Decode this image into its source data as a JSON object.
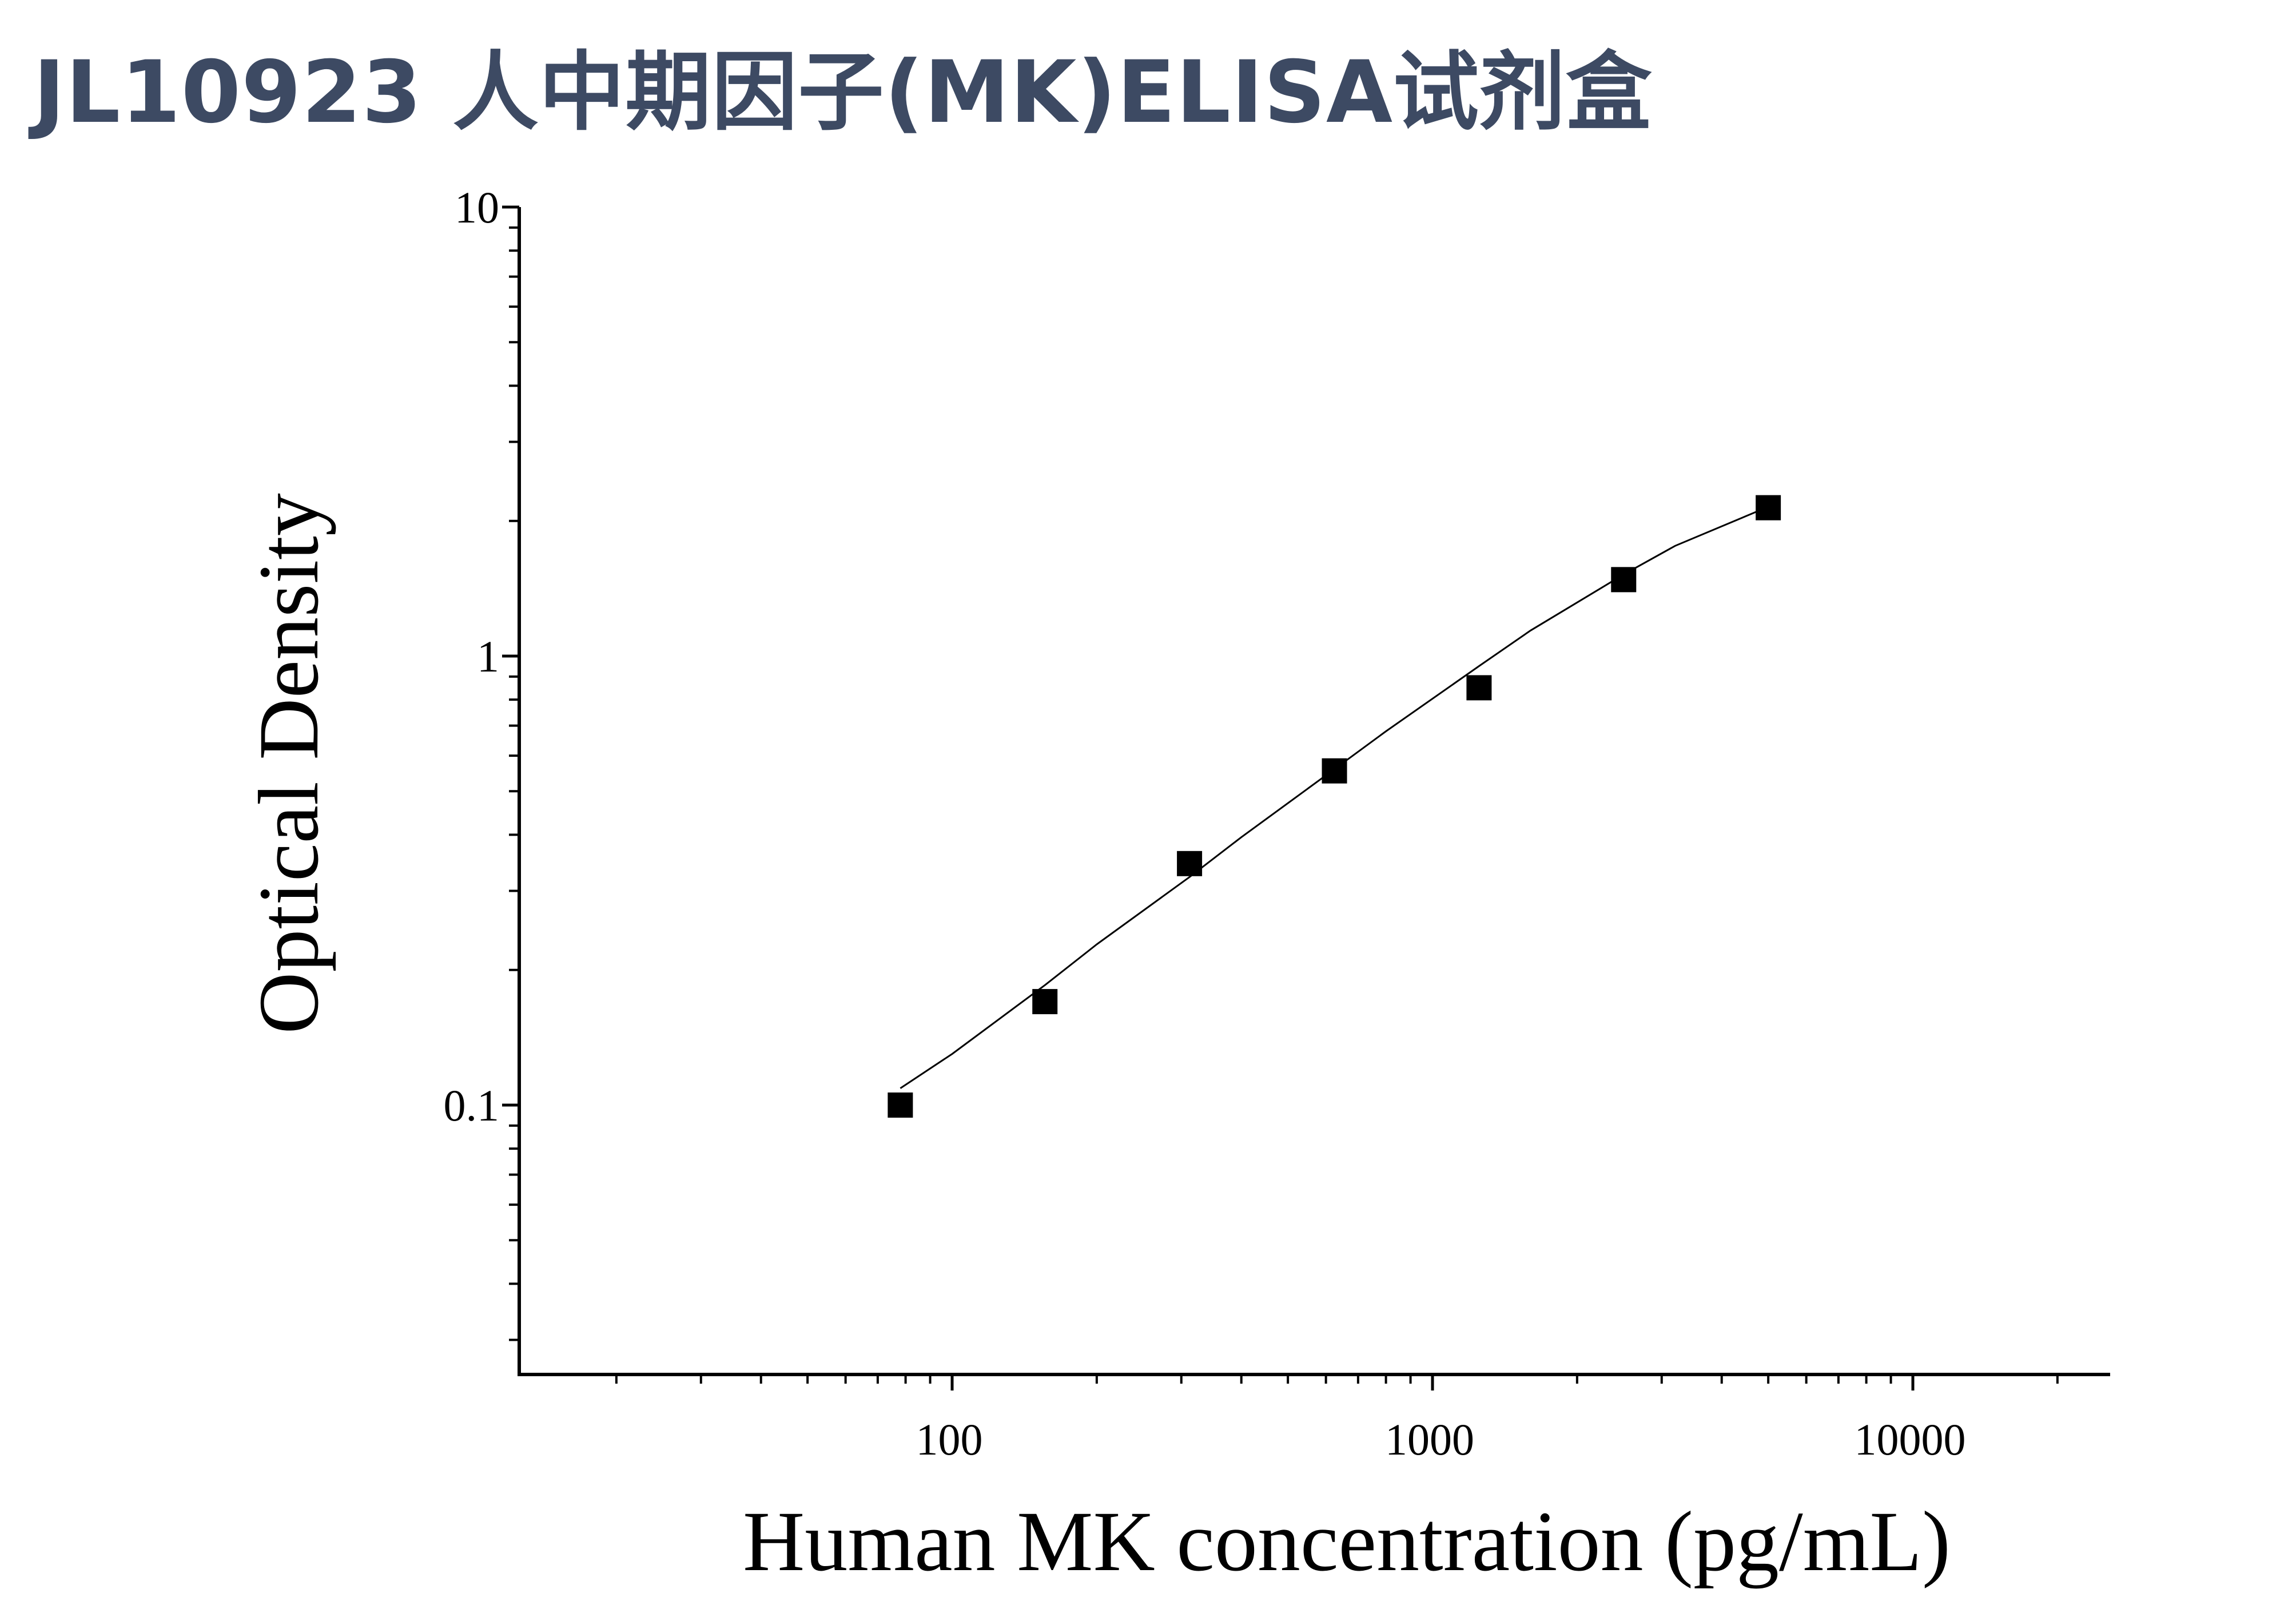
{
  "title": "JL10923 人中期因子(MK)ELISA试剂盒",
  "chart_data": {
    "type": "scatter",
    "xlabel": "Human MK concentration (pg/mL)",
    "ylabel": "Optical Density",
    "xscale": "log",
    "yscale": "log",
    "xlim": [
      10,
      25000
    ],
    "ylim": [
      0.025,
      10
    ],
    "x_ticks": [
      {
        "value": 100,
        "label": "100"
      },
      {
        "value": 1000,
        "label": "1000"
      },
      {
        "value": 10000,
        "label": "10000"
      }
    ],
    "y_ticks": [
      {
        "value": 0.1,
        "label": "0.1"
      },
      {
        "value": 1,
        "label": "1"
      },
      {
        "value": 10,
        "label": "10"
      }
    ],
    "series": [
      {
        "marker": "square",
        "color": "#000000",
        "x": [
          78,
          156,
          312,
          625,
          1250,
          2500,
          5000
        ],
        "y": [
          0.1,
          0.17,
          0.345,
          0.555,
          0.85,
          1.48,
          2.14
        ]
      }
    ],
    "fit_curve": {
      "color": "#000000",
      "x": [
        78,
        100,
        156,
        200,
        312,
        400,
        625,
        800,
        1250,
        1600,
        2500,
        3200,
        5000
      ],
      "y": [
        0.109,
        0.13,
        0.185,
        0.228,
        0.322,
        0.395,
        0.56,
        0.68,
        0.95,
        1.14,
        1.52,
        1.76,
        2.15
      ]
    },
    "grid": false,
    "legend": "none"
  }
}
